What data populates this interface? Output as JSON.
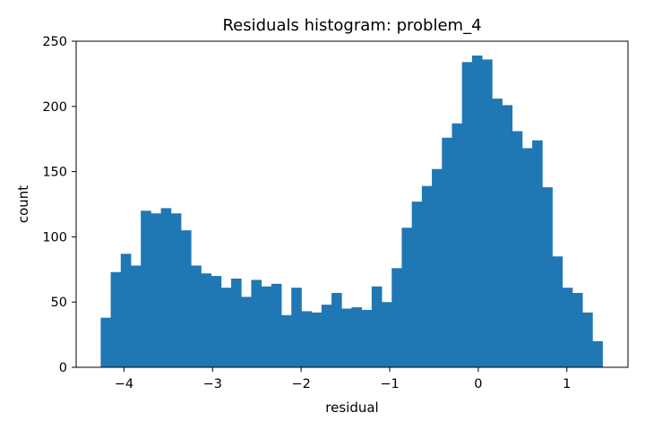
{
  "chart_data": {
    "type": "bar",
    "title": "Residuals histogram: problem_4",
    "xlabel": "residual",
    "ylabel": "count",
    "xlim": [
      -4.54,
      1.69
    ],
    "ylim": [
      0,
      250
    ],
    "x_ticks": [
      -4,
      -3,
      -2,
      -1,
      0,
      1
    ],
    "x_tick_labels": [
      "−4",
      "−3",
      "−2",
      "−1",
      "0",
      "1"
    ],
    "y_ticks": [
      0,
      50,
      100,
      150,
      200,
      250
    ],
    "y_tick_labels": [
      "0",
      "50",
      "100",
      "150",
      "200",
      "250"
    ],
    "bin_start": -4.263,
    "bin_width": 0.1133,
    "values": [
      38,
      73,
      87,
      78,
      120,
      118,
      122,
      118,
      105,
      78,
      72,
      70,
      61,
      68,
      54,
      67,
      62,
      64,
      40,
      61,
      43,
      42,
      48,
      57,
      45,
      46,
      44,
      62,
      50,
      76,
      107,
      127,
      139,
      152,
      176,
      187,
      234,
      239,
      236,
      206,
      201,
      181,
      168,
      174,
      138,
      85,
      61,
      57,
      42,
      20
    ],
    "color": "#1f77b4",
    "grid": false,
    "legend": "none"
  }
}
